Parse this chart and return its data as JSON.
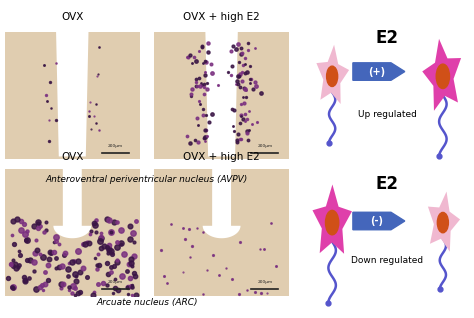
{
  "bg_color": "#ffffff",
  "top_labels": [
    "OVX",
    "OVX + high E2"
  ],
  "bottom_labels": [
    "OVX",
    "OVX + high E2"
  ],
  "caption_top": "Anteroventral periventricular nucleus (AVPV)",
  "caption_bottom": "Arcuate nucleus (ARC)",
  "scale_bar_text": "200μm",
  "up_regulated_text": "Up regulated",
  "down_regulated_text": "Down regulated",
  "e2_label": "E2",
  "plus_label": "(+)",
  "minus_label": "(-)",
  "neuron_light_pink": "#f0b8d0",
  "neuron_magenta": "#df3faa",
  "neuron_nucleus": "#d05018",
  "neuron_axon": "#5555cc",
  "arrow_color": "#4466bb",
  "tissue_bg": "#e0cdb0",
  "stain_dark": "#3a1545",
  "stain_medium": "#7a3080"
}
